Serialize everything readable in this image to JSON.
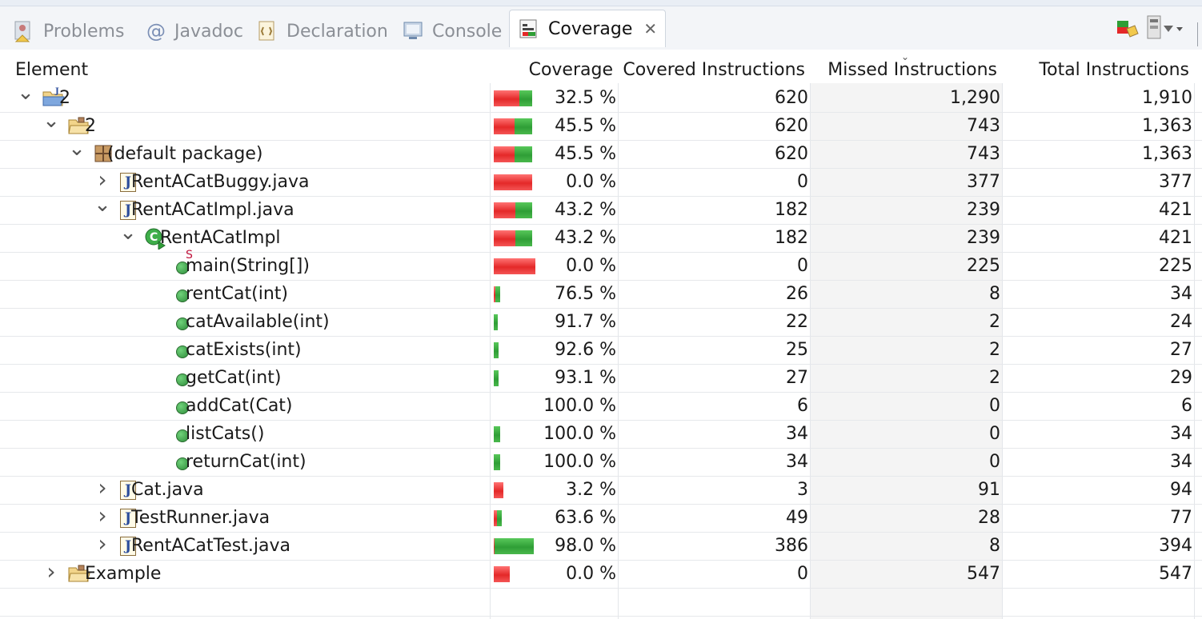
{
  "tabs": [
    {
      "label": "Problems",
      "icon": "problems-icon",
      "active": false
    },
    {
      "label": "Javadoc",
      "icon": "at-sign-icon",
      "active": false
    },
    {
      "label": "Declaration",
      "icon": "declaration-icon",
      "active": false
    },
    {
      "label": "Console",
      "icon": "console-icon",
      "active": false
    },
    {
      "label": "Coverage",
      "icon": "coverage-icon",
      "active": true
    }
  ],
  "colors": {
    "covered": "#2f9e36",
    "missed": "#e42828",
    "missed_column_bg": "#f4f4f4"
  },
  "columns": {
    "element": "Element",
    "coverage": "Coverage",
    "covered": "Covered Instructions",
    "missed": "Missed Instructions",
    "total": "Total Instructions"
  },
  "rows": [
    {
      "name": "2",
      "icon": "java-project-icon",
      "level": 0,
      "expand": "expanded",
      "coverage": "32.5 %",
      "covered": "620",
      "missed": "1,290",
      "total": "1,910"
    },
    {
      "name": "2",
      "icon": "source-folder-icon",
      "level": 1,
      "expand": "expanded",
      "coverage": "45.5 %",
      "covered": "620",
      "missed": "743",
      "total": "1,363"
    },
    {
      "name": "(default package)",
      "icon": "package-icon",
      "level": 2,
      "expand": "expanded",
      "coverage": "45.5 %",
      "covered": "620",
      "missed": "743",
      "total": "1,363"
    },
    {
      "name": "RentACatBuggy.java",
      "icon": "java-file-icon",
      "level": 3,
      "expand": "collapsed",
      "coverage": "0.0 %",
      "covered": "0",
      "missed": "377",
      "total": "377"
    },
    {
      "name": "RentACatImpl.java",
      "icon": "java-file-icon",
      "level": 3,
      "expand": "expanded",
      "coverage": "43.2 %",
      "covered": "182",
      "missed": "239",
      "total": "421"
    },
    {
      "name": "RentACatImpl",
      "icon": "class-icon",
      "level": 4,
      "expand": "expanded",
      "coverage": "43.2 %",
      "covered": "182",
      "missed": "239",
      "total": "421"
    },
    {
      "name": "main(String[])",
      "icon": "static-method-icon",
      "level": 5,
      "expand": "none",
      "static_marker": "S",
      "coverage": "0.0 %",
      "covered": "0",
      "missed": "225",
      "total": "225"
    },
    {
      "name": "rentCat(int)",
      "icon": "method-icon",
      "level": 5,
      "expand": "none",
      "coverage": "76.5 %",
      "covered": "26",
      "missed": "8",
      "total": "34"
    },
    {
      "name": "catAvailable(int)",
      "icon": "method-icon",
      "level": 5,
      "expand": "none",
      "coverage": "91.7 %",
      "covered": "22",
      "missed": "2",
      "total": "24"
    },
    {
      "name": "catExists(int)",
      "icon": "method-icon",
      "level": 5,
      "expand": "none",
      "coverage": "92.6 %",
      "covered": "25",
      "missed": "2",
      "total": "27"
    },
    {
      "name": "getCat(int)",
      "icon": "method-icon",
      "level": 5,
      "expand": "none",
      "coverage": "93.1 %",
      "covered": "27",
      "missed": "2",
      "total": "29"
    },
    {
      "name": "addCat(Cat)",
      "icon": "method-icon",
      "level": 5,
      "expand": "none",
      "coverage": "100.0 %",
      "covered": "6",
      "missed": "0",
      "total": "6"
    },
    {
      "name": "listCats()",
      "icon": "method-icon",
      "level": 5,
      "expand": "none",
      "coverage": "100.0 %",
      "covered": "34",
      "missed": "0",
      "total": "34"
    },
    {
      "name": "returnCat(int)",
      "icon": "method-icon",
      "level": 5,
      "expand": "none",
      "coverage": "100.0 %",
      "covered": "34",
      "missed": "0",
      "total": "34"
    },
    {
      "name": "Cat.java",
      "icon": "java-file-icon",
      "level": 3,
      "expand": "collapsed",
      "coverage": "3.2 %",
      "covered": "3",
      "missed": "91",
      "total": "94"
    },
    {
      "name": "TestRunner.java",
      "icon": "java-file-icon",
      "level": 3,
      "expand": "collapsed",
      "coverage": "63.6 %",
      "covered": "49",
      "missed": "28",
      "total": "77"
    },
    {
      "name": "RentACatTest.java",
      "icon": "java-file-icon",
      "level": 3,
      "expand": "collapsed",
      "coverage": "98.0 %",
      "covered": "386",
      "missed": "8",
      "total": "394"
    },
    {
      "name": "Example",
      "icon": "project-icon",
      "level": 1,
      "expand": "collapsed",
      "coverage": "0.0 %",
      "covered": "0",
      "missed": "547",
      "total": "547"
    }
  ]
}
